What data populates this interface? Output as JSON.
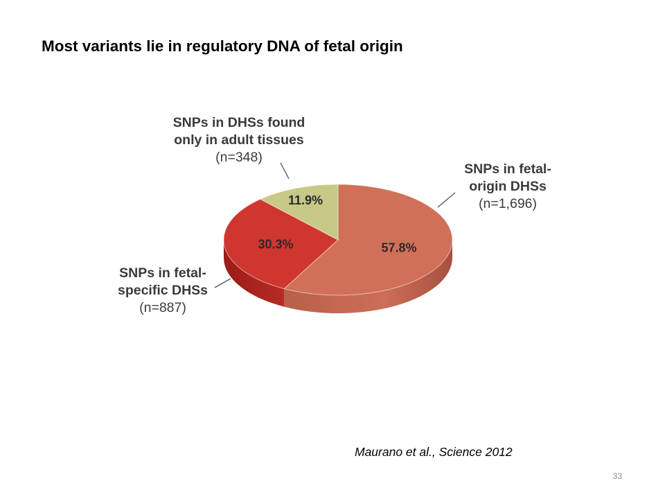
{
  "slide": {
    "title": "Most variants lie in regulatory DNA of fetal origin",
    "citation": "Maurano et al., Science 2012",
    "page_number": "33"
  },
  "chart_data": {
    "type": "pie",
    "style": "3d",
    "slices": [
      {
        "label_lines": [
          "SNPs in fetal-",
          "origin DHSs"
        ],
        "count_label": "(n=1,696)",
        "count": 1696,
        "percent_label": "57.8%",
        "percent": 57.8,
        "color": "#d07058"
      },
      {
        "label_lines": [
          "SNPs in fetal-",
          "specific DHSs"
        ],
        "count_label": "(n=887)",
        "count": 887,
        "percent_label": "30.3%",
        "percent": 30.3,
        "color": "#cf3630"
      },
      {
        "label_lines": [
          "SNPs in DHSs found",
          "only in adult tissues"
        ],
        "count_label": "(n=348)",
        "count": 348,
        "percent_label": "11.9%",
        "percent": 11.9,
        "color": "#c8c887"
      }
    ]
  }
}
